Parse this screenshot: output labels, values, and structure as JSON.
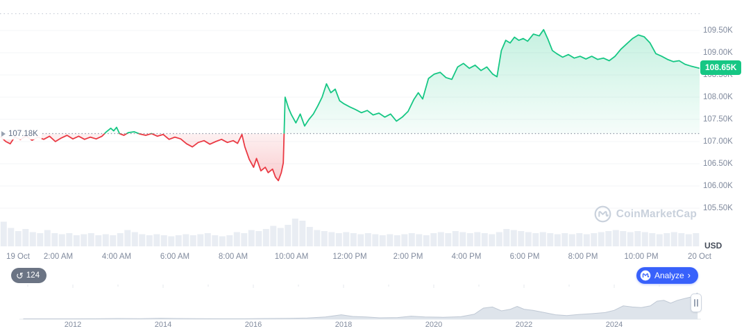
{
  "chart_data": {
    "type": "area",
    "unit_label": "USD",
    "baseline": {
      "value": 107.18,
      "label": "107.18K"
    },
    "current_price": {
      "value": 108.65,
      "label": "108.65K"
    },
    "upper_reference": {
      "value": 109.88
    },
    "y_axis": {
      "ticks": [
        {
          "label": "109.50K",
          "value": 109.5
        },
        {
          "label": "109.00K",
          "value": 109.0
        },
        {
          "label": "108.50K",
          "value": 108.5
        },
        {
          "label": "108.00K",
          "value": 108.0
        },
        {
          "label": "107.50K",
          "value": 107.5
        },
        {
          "label": "107.00K",
          "value": 107.0
        },
        {
          "label": "106.50K",
          "value": 106.5
        },
        {
          "label": "106.00K",
          "value": 106.0
        },
        {
          "label": "105.50K",
          "value": 105.5
        }
      ]
    },
    "x_axis": {
      "ticks": [
        {
          "label": "19 Oct",
          "hour": 0
        },
        {
          "label": "2:00 AM",
          "hour": 2
        },
        {
          "label": "4:00 AM",
          "hour": 4
        },
        {
          "label": "6:00 AM",
          "hour": 6
        },
        {
          "label": "8:00 AM",
          "hour": 8
        },
        {
          "label": "10:00 AM",
          "hour": 10
        },
        {
          "label": "12:00 PM",
          "hour": 12
        },
        {
          "label": "2:00 PM",
          "hour": 14
        },
        {
          "label": "4:00 PM",
          "hour": 16
        },
        {
          "label": "6:00 PM",
          "hour": 18
        },
        {
          "label": "8:00 PM",
          "hour": 20
        },
        {
          "label": "10:00 PM",
          "hour": 22
        },
        {
          "label": "20 Oct",
          "hour": 24
        }
      ]
    },
    "price_series": {
      "x_unit": "hours_since_19_oct_00_00",
      "y_unit": "USD_thousands",
      "points": [
        [
          0,
          107.12
        ],
        [
          0.2,
          107.0
        ],
        [
          0.35,
          106.95
        ],
        [
          0.5,
          107.1
        ],
        [
          0.7,
          107.05
        ],
        [
          0.9,
          107.12
        ],
        [
          1.1,
          107.03
        ],
        [
          1.3,
          107.1
        ],
        [
          1.5,
          107.05
        ],
        [
          1.7,
          107.12
        ],
        [
          1.9,
          107.0
        ],
        [
          2.1,
          107.08
        ],
        [
          2.3,
          107.14
        ],
        [
          2.5,
          107.06
        ],
        [
          2.7,
          107.12
        ],
        [
          2.9,
          107.05
        ],
        [
          3.1,
          107.1
        ],
        [
          3.3,
          107.06
        ],
        [
          3.5,
          107.12
        ],
        [
          3.65,
          107.22
        ],
        [
          3.8,
          107.3
        ],
        [
          3.9,
          107.24
        ],
        [
          4.0,
          107.32
        ],
        [
          4.1,
          107.18
        ],
        [
          4.25,
          107.14
        ],
        [
          4.4,
          107.2
        ],
        [
          4.6,
          107.22
        ],
        [
          4.8,
          107.17
        ],
        [
          5.0,
          107.14
        ],
        [
          5.2,
          107.18
        ],
        [
          5.4,
          107.12
        ],
        [
          5.6,
          107.16
        ],
        [
          5.8,
          107.05
        ],
        [
          6.0,
          107.1
        ],
        [
          6.2,
          107.06
        ],
        [
          6.4,
          106.95
        ],
        [
          6.6,
          106.88
        ],
        [
          6.8,
          106.98
        ],
        [
          7.0,
          107.02
        ],
        [
          7.2,
          106.94
        ],
        [
          7.4,
          107.0
        ],
        [
          7.6,
          107.05
        ],
        [
          7.8,
          106.98
        ],
        [
          8.0,
          107.02
        ],
        [
          8.15,
          106.96
        ],
        [
          8.3,
          107.16
        ],
        [
          8.4,
          106.88
        ],
        [
          8.55,
          106.6
        ],
        [
          8.7,
          106.42
        ],
        [
          8.8,
          106.62
        ],
        [
          8.95,
          106.34
        ],
        [
          9.1,
          106.42
        ],
        [
          9.2,
          106.3
        ],
        [
          9.35,
          106.38
        ],
        [
          9.45,
          106.2
        ],
        [
          9.55,
          106.12
        ],
        [
          9.65,
          106.3
        ],
        [
          9.72,
          106.52
        ],
        [
          9.78,
          108.0
        ],
        [
          9.9,
          107.75
        ],
        [
          10.0,
          107.6
        ],
        [
          10.15,
          107.42
        ],
        [
          10.3,
          107.62
        ],
        [
          10.45,
          107.35
        ],
        [
          10.6,
          107.5
        ],
        [
          10.75,
          107.62
        ],
        [
          10.9,
          107.8
        ],
        [
          11.05,
          108.0
        ],
        [
          11.2,
          108.3
        ],
        [
          11.35,
          108.1
        ],
        [
          11.5,
          108.18
        ],
        [
          11.65,
          107.92
        ],
        [
          11.8,
          107.85
        ],
        [
          12.0,
          107.78
        ],
        [
          12.2,
          107.72
        ],
        [
          12.4,
          107.65
        ],
        [
          12.6,
          107.7
        ],
        [
          12.8,
          107.6
        ],
        [
          13.0,
          107.64
        ],
        [
          13.2,
          107.55
        ],
        [
          13.4,
          107.62
        ],
        [
          13.6,
          107.46
        ],
        [
          13.8,
          107.55
        ],
        [
          14.0,
          107.68
        ],
        [
          14.2,
          107.95
        ],
        [
          14.35,
          108.1
        ],
        [
          14.5,
          107.96
        ],
        [
          14.7,
          108.42
        ],
        [
          14.9,
          108.52
        ],
        [
          15.1,
          108.56
        ],
        [
          15.3,
          108.44
        ],
        [
          15.5,
          108.4
        ],
        [
          15.7,
          108.68
        ],
        [
          15.9,
          108.76
        ],
        [
          16.1,
          108.65
        ],
        [
          16.3,
          108.72
        ],
        [
          16.5,
          108.6
        ],
        [
          16.7,
          108.68
        ],
        [
          16.9,
          108.52
        ],
        [
          17.05,
          108.46
        ],
        [
          17.2,
          109.05
        ],
        [
          17.35,
          109.28
        ],
        [
          17.5,
          109.22
        ],
        [
          17.65,
          109.35
        ],
        [
          17.8,
          109.28
        ],
        [
          17.95,
          109.32
        ],
        [
          18.1,
          109.26
        ],
        [
          18.3,
          109.42
        ],
        [
          18.5,
          109.38
        ],
        [
          18.65,
          109.52
        ],
        [
          18.8,
          109.3
        ],
        [
          18.95,
          109.05
        ],
        [
          19.1,
          108.98
        ],
        [
          19.3,
          108.9
        ],
        [
          19.5,
          108.96
        ],
        [
          19.7,
          108.88
        ],
        [
          19.9,
          108.92
        ],
        [
          20.1,
          108.86
        ],
        [
          20.3,
          108.92
        ],
        [
          20.5,
          108.85
        ],
        [
          20.7,
          108.88
        ],
        [
          20.9,
          108.82
        ],
        [
          21.1,
          108.92
        ],
        [
          21.3,
          109.08
        ],
        [
          21.5,
          109.2
        ],
        [
          21.7,
          109.32
        ],
        [
          21.9,
          109.4
        ],
        [
          22.1,
          109.36
        ],
        [
          22.3,
          109.22
        ],
        [
          22.5,
          108.98
        ],
        [
          22.7,
          108.92
        ],
        [
          22.9,
          108.85
        ],
        [
          23.1,
          108.8
        ],
        [
          23.3,
          108.82
        ],
        [
          23.5,
          108.74
        ],
        [
          23.7,
          108.7
        ],
        [
          24,
          108.65
        ]
      ]
    },
    "volume_series": [
      0.85,
      0.55,
      0.4,
      0.5,
      0.35,
      0.3,
      0.45,
      0.3,
      0.25,
      0.3,
      0.2,
      0.25,
      0.3,
      0.2,
      0.25,
      0.2,
      0.3,
      0.45,
      0.35,
      0.25,
      0.2,
      0.25,
      0.2,
      0.15,
      0.2,
      0.25,
      0.2,
      0.25,
      0.3,
      0.2,
      0.15,
      0.2,
      0.35,
      0.3,
      0.45,
      0.4,
      0.5,
      0.65,
      0.55,
      0.7,
      1.0,
      0.9,
      0.6,
      0.45,
      0.4,
      0.35,
      0.3,
      0.35,
      0.3,
      0.25,
      0.3,
      0.25,
      0.2,
      0.25,
      0.2,
      0.25,
      0.3,
      0.25,
      0.2,
      0.3,
      0.35,
      0.3,
      0.4,
      0.35,
      0.3,
      0.35,
      0.3,
      0.25,
      0.35,
      0.5,
      0.45,
      0.4,
      0.35,
      0.3,
      0.35,
      0.3,
      0.25,
      0.3,
      0.25,
      0.3,
      0.25,
      0.3,
      0.35,
      0.4,
      0.45,
      0.4,
      0.35,
      0.4,
      0.35,
      0.3,
      0.25,
      0.3,
      0.35,
      0.3,
      0.25,
      0.3
    ],
    "range_selector": {
      "year_labels": [
        {
          "label": "2012",
          "year": 2012
        },
        {
          "label": "2014",
          "year": 2014
        },
        {
          "label": "2016",
          "year": 2016
        },
        {
          "label": "2018",
          "year": 2018
        },
        {
          "label": "2020",
          "year": 2020
        },
        {
          "label": "2022",
          "year": 2022
        },
        {
          "label": "2024",
          "year": 2024
        }
      ],
      "points": [
        [
          2010.9,
          0.012
        ],
        [
          2011.5,
          0.012
        ],
        [
          2012,
          0.012
        ],
        [
          2012.5,
          0.015
        ],
        [
          2013,
          0.025
        ],
        [
          2013.5,
          0.02
        ],
        [
          2013.95,
          0.035
        ],
        [
          2014.3,
          0.025
        ],
        [
          2014.8,
          0.018
        ],
        [
          2015.3,
          0.014
        ],
        [
          2015.8,
          0.016
        ],
        [
          2016.3,
          0.025
        ],
        [
          2016.8,
          0.03
        ],
        [
          2017.2,
          0.045
        ],
        [
          2017.6,
          0.08
        ],
        [
          2017.95,
          0.16
        ],
        [
          2018.2,
          0.1
        ],
        [
          2018.5,
          0.08
        ],
        [
          2018.8,
          0.05
        ],
        [
          2019.2,
          0.06
        ],
        [
          2019.5,
          0.11
        ],
        [
          2019.8,
          0.08
        ],
        [
          2020.2,
          0.07
        ],
        [
          2020.6,
          0.09
        ],
        [
          2020.9,
          0.18
        ],
        [
          2021.1,
          0.4
        ],
        [
          2021.3,
          0.44
        ],
        [
          2021.5,
          0.3
        ],
        [
          2021.7,
          0.36
        ],
        [
          2021.85,
          0.46
        ],
        [
          2022.0,
          0.36
        ],
        [
          2022.2,
          0.32
        ],
        [
          2022.45,
          0.24
        ],
        [
          2022.7,
          0.16
        ],
        [
          2022.95,
          0.13
        ],
        [
          2023.2,
          0.17
        ],
        [
          2023.5,
          0.2
        ],
        [
          2023.8,
          0.24
        ],
        [
          2024.0,
          0.32
        ],
        [
          2024.2,
          0.48
        ],
        [
          2024.4,
          0.44
        ],
        [
          2024.6,
          0.42
        ],
        [
          2024.8,
          0.48
        ],
        [
          2024.95,
          0.65
        ],
        [
          2025.1,
          0.68
        ],
        [
          2025.25,
          0.58
        ],
        [
          2025.4,
          0.68
        ],
        [
          2025.55,
          0.74
        ],
        [
          2025.7,
          0.8
        ],
        [
          2025.85,
          0.95
        ]
      ]
    },
    "colors": {
      "up": "#16c784",
      "down": "#ea3943",
      "accent_blue": "#3861fb",
      "axis_text": "#808a9d",
      "grid": "#f3f4f7",
      "volume": "#e9edf3",
      "baseline_dots": "#8b93a3",
      "upper_dots": "#c2c9d4",
      "minichart_fill": "#dee4eb",
      "minichart_stroke": "#bfc8d4",
      "minichart_axis": "#e4e8ee",
      "watermark": "#c9d1dc"
    }
  },
  "overlays": {
    "watermark_text": "CoinMarketCap"
  },
  "toolbar": {
    "history_count": "124",
    "analyze_label": "Analyze",
    "analyze_chevron": "›",
    "history_icon_glyph": "↺"
  }
}
